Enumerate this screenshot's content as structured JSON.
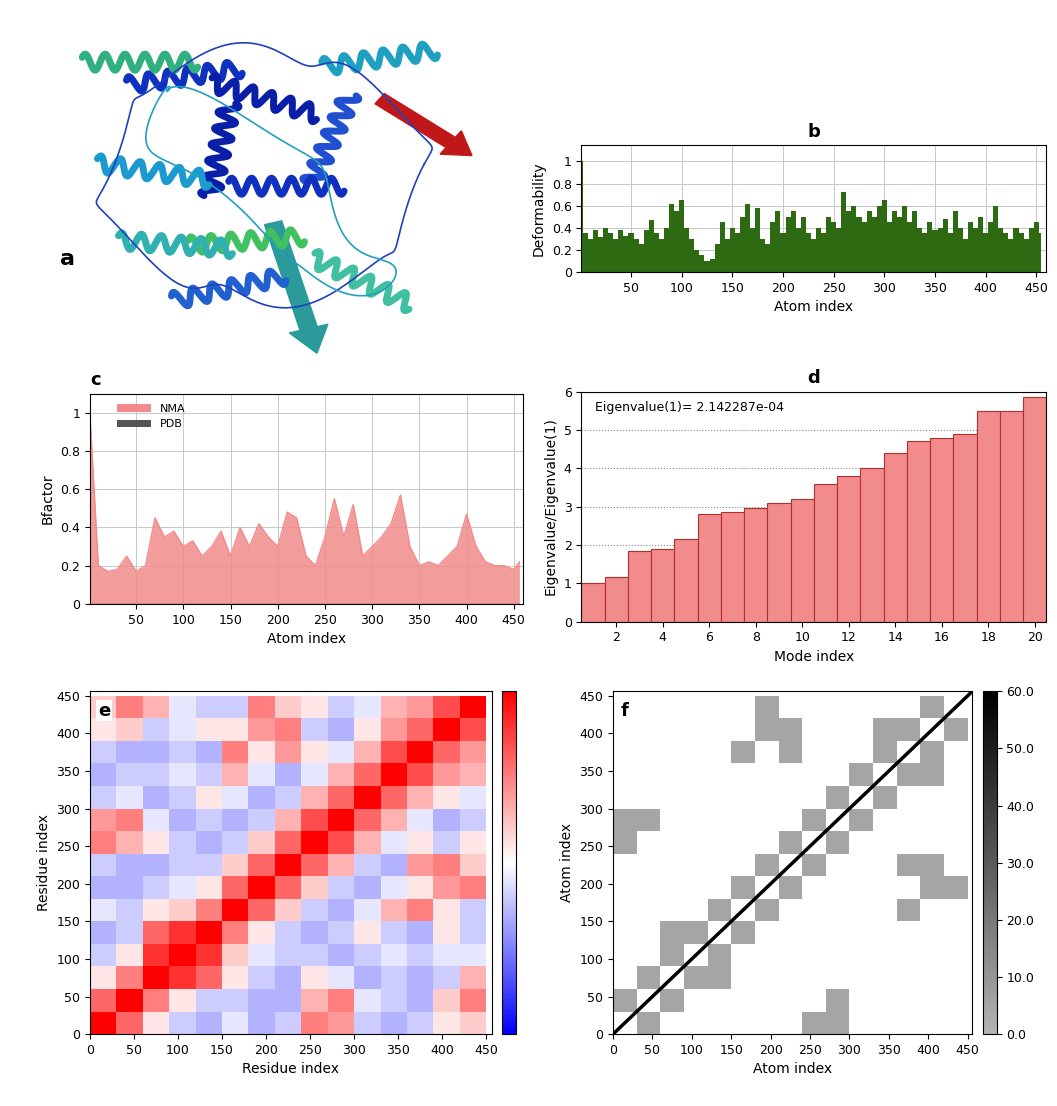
{
  "chart_data": [
    {
      "type": "structure",
      "title": "a"
    },
    {
      "type": "area",
      "title": "b",
      "x_label": "Atom index",
      "y_label": "Deformability",
      "color": "#2d6a12",
      "grid": true,
      "x": [
        1,
        5,
        10,
        15,
        20,
        25,
        30,
        35,
        40,
        45,
        50,
        55,
        60,
        65,
        70,
        75,
        80,
        85,
        90,
        95,
        100,
        105,
        110,
        115,
        120,
        125,
        130,
        135,
        140,
        145,
        150,
        155,
        160,
        165,
        170,
        175,
        180,
        185,
        190,
        195,
        200,
        205,
        210,
        215,
        220,
        225,
        230,
        235,
        240,
        245,
        250,
        255,
        260,
        265,
        270,
        275,
        280,
        285,
        290,
        295,
        300,
        305,
        310,
        315,
        320,
        325,
        330,
        335,
        340,
        345,
        350,
        355,
        360,
        365,
        370,
        375,
        380,
        385,
        390,
        395,
        400,
        405,
        410,
        415,
        420,
        425,
        430,
        435,
        440,
        445,
        450,
        455
      ],
      "values": [
        1.0,
        0.35,
        0.3,
        0.38,
        0.32,
        0.4,
        0.35,
        0.3,
        0.38,
        0.33,
        0.35,
        0.3,
        0.25,
        0.38,
        0.47,
        0.35,
        0.3,
        0.4,
        0.62,
        0.55,
        0.65,
        0.4,
        0.3,
        0.2,
        0.15,
        0.1,
        0.12,
        0.25,
        0.45,
        0.3,
        0.4,
        0.35,
        0.5,
        0.62,
        0.4,
        0.58,
        0.3,
        0.25,
        0.45,
        0.55,
        0.35,
        0.5,
        0.55,
        0.4,
        0.5,
        0.35,
        0.3,
        0.4,
        0.35,
        0.5,
        0.45,
        0.4,
        0.72,
        0.55,
        0.6,
        0.5,
        0.45,
        0.55,
        0.5,
        0.6,
        0.65,
        0.45,
        0.55,
        0.5,
        0.6,
        0.45,
        0.55,
        0.4,
        0.35,
        0.45,
        0.38,
        0.4,
        0.48,
        0.35,
        0.55,
        0.4,
        0.3,
        0.45,
        0.4,
        0.5,
        0.35,
        0.45,
        0.6,
        0.4,
        0.35,
        0.3,
        0.4,
        0.35,
        0.3,
        0.4,
        0.45,
        0.35
      ],
      "xlim": [
        1,
        460
      ],
      "xticks": [
        50,
        100,
        150,
        200,
        250,
        300,
        350,
        400,
        450
      ],
      "ylim": [
        0,
        1.15
      ],
      "yticks": [
        0,
        0.2,
        0.4,
        0.6,
        0.8,
        1
      ]
    },
    {
      "type": "area",
      "title": "c",
      "x_label": "Atom index",
      "y_label": "Bfactor",
      "grid": true,
      "legend": "upper left",
      "x": [
        1,
        10,
        20,
        30,
        40,
        50,
        60,
        70,
        80,
        90,
        100,
        110,
        120,
        130,
        140,
        150,
        160,
        170,
        180,
        190,
        200,
        210,
        220,
        230,
        240,
        250,
        260,
        270,
        280,
        290,
        300,
        310,
        320,
        330,
        340,
        350,
        360,
        370,
        380,
        390,
        400,
        410,
        420,
        430,
        440,
        450,
        456
      ],
      "series": [
        {
          "name": "NMA",
          "color": "#f28b8b",
          "values": [
            1.0,
            0.2,
            0.17,
            0.18,
            0.25,
            0.17,
            0.2,
            0.45,
            0.35,
            0.38,
            0.3,
            0.33,
            0.25,
            0.3,
            0.38,
            0.25,
            0.4,
            0.3,
            0.42,
            0.35,
            0.3,
            0.48,
            0.45,
            0.25,
            0.2,
            0.35,
            0.55,
            0.35,
            0.52,
            0.25,
            0.3,
            0.35,
            0.42,
            0.57,
            0.3,
            0.2,
            0.22,
            0.2,
            0.25,
            0.3,
            0.47,
            0.3,
            0.22,
            0.2,
            0.2,
            0.18,
            0.22
          ]
        },
        {
          "name": "PDB",
          "color": "#555555",
          "values": [
            0,
            0,
            0,
            0,
            0,
            0,
            0,
            0,
            0,
            0,
            0,
            0,
            0,
            0,
            0,
            0,
            0,
            0,
            0,
            0,
            0,
            0,
            0,
            0,
            0,
            0,
            0,
            0,
            0,
            0,
            0,
            0,
            0,
            0,
            0,
            0,
            0,
            0,
            0,
            0,
            0,
            0,
            0,
            0,
            0,
            0,
            0
          ]
        }
      ],
      "xlim": [
        1,
        460
      ],
      "xticks": [
        50,
        100,
        150,
        200,
        250,
        300,
        350,
        400,
        450
      ],
      "ylim": [
        0,
        1.1
      ],
      "yticks": [
        0,
        0.2,
        0.4,
        0.6,
        0.8,
        1
      ]
    },
    {
      "type": "bar",
      "title": "d",
      "x_label": "Mode index",
      "y_label": "Eigenvalue/Eigenvalue(1)",
      "color": "#f28b8b",
      "grid": true,
      "annotation": "Eigenvalue(1)= 2.142287e-04",
      "x": [
        1,
        2,
        3,
        4,
        5,
        6,
        7,
        8,
        9,
        10,
        11,
        12,
        13,
        14,
        15,
        16,
        17,
        18,
        19,
        20
      ],
      "values": [
        1,
        1.15,
        1.85,
        1.9,
        2.15,
        2.8,
        2.85,
        2.95,
        3.1,
        3.2,
        3.6,
        3.8,
        4.0,
        4.4,
        4.7,
        4.8,
        4.9,
        5.5,
        5.5,
        5.85
      ],
      "xlim": [
        0.5,
        20.5
      ],
      "xticks": [
        2,
        4,
        6,
        8,
        10,
        12,
        14,
        16,
        18,
        20
      ],
      "ylim": [
        0,
        6
      ],
      "yticks": [
        0,
        1,
        2,
        3,
        4,
        5,
        6
      ]
    },
    {
      "type": "heatmap",
      "title": "e",
      "x_label": "Residue index",
      "y_label": "Residue index",
      "x_edges": [
        0,
        30,
        60,
        90,
        120,
        150,
        180,
        210,
        240,
        270,
        300,
        330,
        360,
        390,
        420,
        450
      ],
      "y_edges": [
        0,
        30,
        60,
        90,
        120,
        150,
        180,
        210,
        240,
        270,
        300,
        330,
        360,
        390,
        420,
        450
      ],
      "cells": [
        [
          1,
          0.6,
          0.1,
          -0.2,
          -0.3,
          -0.1,
          -0.3,
          -0.2,
          0.5,
          0.4,
          -0.2,
          -0.3,
          -0.2,
          0.1,
          0.2
        ],
        [
          0.6,
          1,
          0.5,
          0.1,
          -0.2,
          -0.2,
          -0.3,
          -0.3,
          0.3,
          0.5,
          -0.1,
          -0.2,
          -0.3,
          0.2,
          0.5
        ],
        [
          0.1,
          0.5,
          1,
          0.8,
          0.6,
          0.1,
          -0.2,
          -0.3,
          0.1,
          -0.1,
          -0.3,
          -0.2,
          -0.3,
          -0.2,
          0.3
        ],
        [
          -0.2,
          0.1,
          0.8,
          1,
          0.8,
          0.2,
          -0.1,
          -0.2,
          -0.2,
          -0.3,
          -0.2,
          -0.1,
          -0.2,
          -0.1,
          -0.1
        ],
        [
          -0.3,
          -0.2,
          0.6,
          0.8,
          1,
          0.5,
          0.1,
          -0.2,
          -0.3,
          -0.2,
          0.1,
          -0.2,
          -0.3,
          0.1,
          -0.2
        ],
        [
          -0.1,
          -0.2,
          0.1,
          0.2,
          0.5,
          1,
          0.6,
          0.2,
          -0.2,
          -0.3,
          -0.1,
          0.3,
          0.5,
          0.1,
          -0.2
        ],
        [
          -0.3,
          -0.3,
          -0.2,
          -0.1,
          0.1,
          0.6,
          1,
          0.6,
          0.2,
          -0.2,
          -0.3,
          -0.1,
          0.1,
          0.4,
          0.5
        ],
        [
          -0.2,
          -0.3,
          -0.3,
          -0.2,
          -0.2,
          0.2,
          0.6,
          1,
          0.6,
          0.3,
          -0.2,
          -0.3,
          0.4,
          0.5,
          0.2
        ],
        [
          0.5,
          0.3,
          0.1,
          -0.2,
          -0.3,
          -0.2,
          0.2,
          0.6,
          1,
          0.7,
          0.3,
          -0.1,
          0.1,
          -0.2,
          0.1
        ],
        [
          0.4,
          0.5,
          -0.1,
          -0.3,
          -0.2,
          -0.3,
          -0.2,
          0.3,
          0.7,
          1,
          0.6,
          0.3,
          -0.1,
          -0.3,
          -0.2
        ],
        [
          -0.2,
          -0.1,
          -0.3,
          -0.2,
          0.1,
          -0.1,
          -0.3,
          -0.2,
          0.3,
          0.6,
          1,
          0.6,
          0.3,
          0.1,
          -0.1
        ],
        [
          -0.3,
          -0.2,
          -0.2,
          -0.1,
          -0.2,
          0.3,
          -0.1,
          -0.3,
          -0.1,
          0.3,
          0.6,
          1,
          0.7,
          0.4,
          0.3
        ],
        [
          -0.2,
          -0.3,
          -0.3,
          -0.2,
          -0.3,
          0.5,
          0.1,
          0.4,
          0.1,
          -0.1,
          0.3,
          0.7,
          1,
          0.6,
          0.4
        ],
        [
          0.1,
          0.2,
          -0.2,
          -0.1,
          0.1,
          0.1,
          0.4,
          0.5,
          -0.2,
          -0.3,
          0.1,
          0.4,
          0.6,
          1,
          0.7
        ],
        [
          0.2,
          0.5,
          0.3,
          -0.1,
          -0.2,
          -0.2,
          0.5,
          0.2,
          0.1,
          -0.2,
          -0.1,
          0.3,
          0.4,
          0.7,
          1
        ]
      ],
      "colorbar_range": [
        -1,
        1
      ],
      "xlim": [
        0,
        456
      ],
      "xticks": [
        0,
        50,
        100,
        150,
        200,
        250,
        300,
        350,
        400,
        450
      ],
      "ylim": [
        0,
        456
      ],
      "yticks": [
        0,
        50,
        100,
        150,
        200,
        250,
        300,
        350,
        400,
        450
      ]
    },
    {
      "type": "heatmap",
      "title": "f",
      "x_label": "Atom index",
      "y_label": "Atom index",
      "x_edges": [
        0,
        30,
        60,
        90,
        120,
        150,
        180,
        210,
        240,
        270,
        300,
        330,
        360,
        390,
        420,
        450
      ],
      "y_edges": [
        0,
        30,
        60,
        90,
        120,
        150,
        180,
        210,
        240,
        270,
        300,
        330,
        360,
        390,
        420,
        450
      ],
      "diagonal": 60,
      "cells": [
        [
          null,
          5,
          null,
          null,
          null,
          null,
          null,
          null,
          5,
          5,
          null,
          null,
          null,
          null,
          null
        ],
        [
          5,
          null,
          5,
          null,
          null,
          null,
          null,
          null,
          null,
          5,
          null,
          null,
          null,
          null,
          null
        ],
        [
          null,
          5,
          null,
          5,
          5,
          null,
          null,
          null,
          null,
          null,
          null,
          null,
          null,
          null,
          null
        ],
        [
          null,
          null,
          5,
          null,
          5,
          null,
          null,
          null,
          null,
          null,
          null,
          null,
          null,
          null,
          null
        ],
        [
          null,
          null,
          5,
          5,
          null,
          5,
          null,
          null,
          null,
          null,
          null,
          null,
          null,
          null,
          null
        ],
        [
          null,
          null,
          null,
          null,
          5,
          null,
          5,
          null,
          null,
          null,
          null,
          null,
          5,
          null,
          null
        ],
        [
          null,
          null,
          null,
          null,
          null,
          5,
          null,
          5,
          null,
          null,
          null,
          null,
          null,
          5,
          5
        ],
        [
          null,
          null,
          null,
          null,
          null,
          null,
          5,
          null,
          5,
          null,
          null,
          null,
          5,
          5,
          null
        ],
        [
          5,
          null,
          null,
          null,
          null,
          null,
          null,
          5,
          null,
          5,
          null,
          null,
          null,
          null,
          null
        ],
        [
          5,
          5,
          null,
          null,
          null,
          null,
          null,
          null,
          5,
          null,
          5,
          null,
          null,
          null,
          null
        ],
        [
          null,
          null,
          null,
          null,
          null,
          null,
          null,
          null,
          null,
          5,
          null,
          5,
          null,
          null,
          null
        ],
        [
          null,
          null,
          null,
          null,
          null,
          null,
          null,
          null,
          null,
          null,
          5,
          null,
          5,
          5,
          null
        ],
        [
          null,
          null,
          null,
          null,
          null,
          5,
          null,
          5,
          null,
          null,
          null,
          5,
          null,
          5,
          null
        ],
        [
          null,
          null,
          null,
          null,
          null,
          null,
          5,
          5,
          null,
          null,
          null,
          5,
          5,
          null,
          5
        ],
        [
          null,
          null,
          null,
          null,
          null,
          null,
          5,
          null,
          null,
          null,
          null,
          null,
          null,
          5,
          null
        ]
      ],
      "colorbar_range": [
        0,
        60
      ],
      "colorbar_ticks": [
        {
          "value": 0,
          "label": "0.0"
        },
        {
          "value": 10,
          "label": "10.0"
        },
        {
          "value": 20,
          "label": "20.0"
        },
        {
          "value": 30,
          "label": "30.0"
        },
        {
          "value": 40,
          "label": "40.0"
        },
        {
          "value": 50,
          "label": "50.0"
        },
        {
          "value": 60,
          "label": "60.0"
        }
      ],
      "xlim": [
        0,
        456
      ],
      "xticks": [
        0,
        50,
        100,
        150,
        200,
        250,
        300,
        350,
        400,
        450
      ],
      "ylim": [
        0,
        456
      ],
      "yticks": [
        0,
        50,
        100,
        150,
        200,
        250,
        300,
        350,
        400,
        450
      ]
    }
  ]
}
